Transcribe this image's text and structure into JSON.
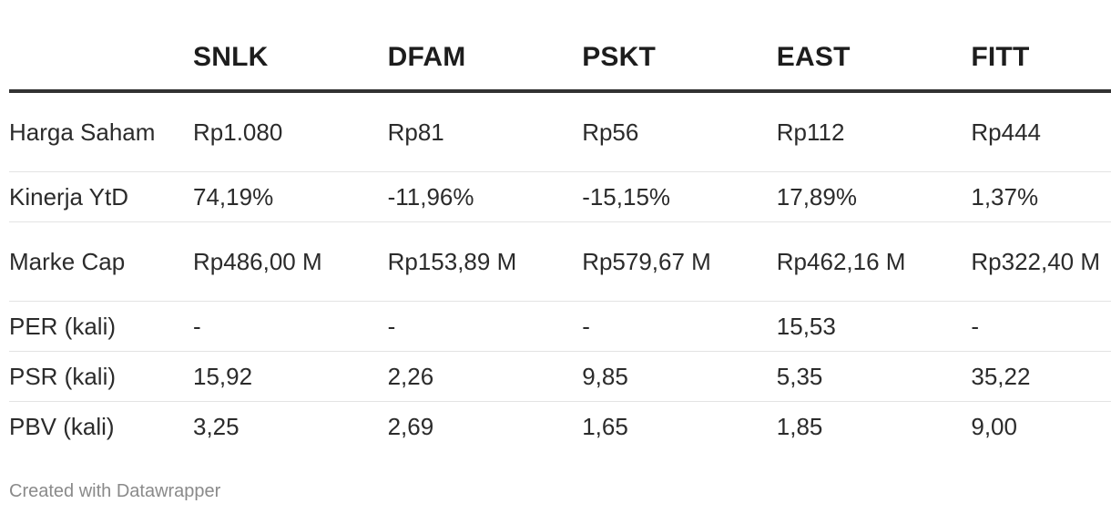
{
  "chart_data": {
    "type": "table",
    "columns": [
      "",
      "SNLK",
      "DFAM",
      "PSKT",
      "EAST",
      "FITT"
    ],
    "rows": [
      {
        "label": "Harga Saham",
        "values": [
          "Rp1.080",
          "Rp81",
          "Rp56",
          "Rp112",
          "Rp444"
        ]
      },
      {
        "label": "Kinerja YtD",
        "values": [
          "74,19%",
          "-11,96%",
          "-15,15%",
          "17,89%",
          "1,37%"
        ]
      },
      {
        "label": "Marke Cap",
        "values": [
          "Rp486,00 M",
          "Rp153,89 M",
          "Rp579,67 M",
          "Rp462,16 M",
          "Rp322,40 M"
        ]
      },
      {
        "label": "PER (kali)",
        "values": [
          "-",
          "-",
          "-",
          "15,53",
          "-"
        ]
      },
      {
        "label": "PSR (kali)",
        "values": [
          "15,92",
          "2,26",
          "9,85",
          "5,35",
          "35,22"
        ]
      },
      {
        "label": "PBV (kali)",
        "values": [
          "3,25",
          "2,69",
          "1,65",
          "1,85",
          "9,00"
        ]
      }
    ]
  },
  "footer": {
    "credit": "Created with Datawrapper"
  }
}
